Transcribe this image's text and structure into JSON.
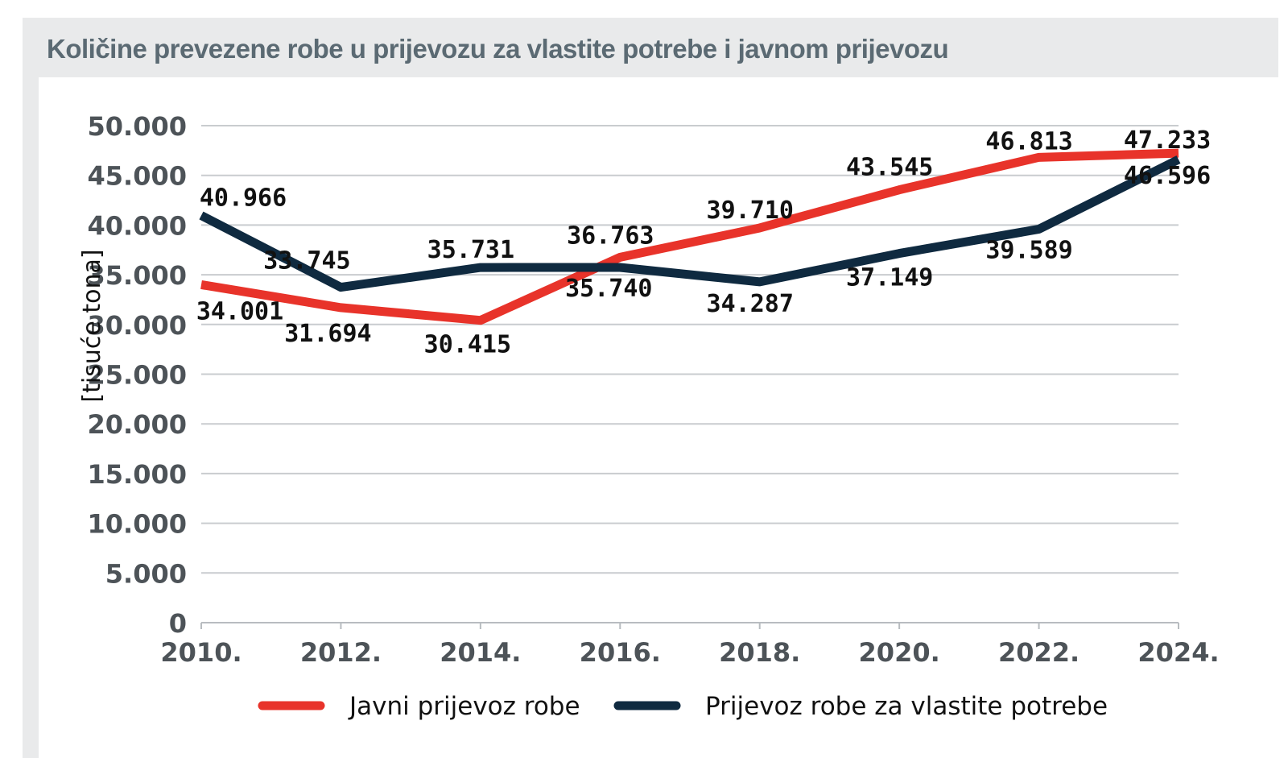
{
  "chart_data": {
    "type": "line",
    "title": "Količine prevezene robe u prijevozu za vlastite potrebe i javnom prijevozu",
    "xlabel": "",
    "ylabel": "[tisuće tona]",
    "categories": [
      "2010.",
      "2012.",
      "2014.",
      "2016.",
      "2018.",
      "2020.",
      "2022.",
      "2024."
    ],
    "ylim": [
      0,
      50000
    ],
    "yticks": [
      0,
      5000,
      10000,
      15000,
      20000,
      25000,
      30000,
      35000,
      40000,
      45000,
      50000
    ],
    "ytick_labels": [
      "0",
      "5.000",
      "10.000",
      "15.000",
      "20.000",
      "25.000",
      "30.000",
      "35.000",
      "40.000",
      "45.000",
      "50.000"
    ],
    "grid": true,
    "legend_position": "bottom",
    "series": [
      {
        "name": "Javni prijevoz robe",
        "color": "#e8332a",
        "values": [
          34001,
          31694,
          30415,
          36763,
          39710,
          43545,
          46813,
          47233
        ],
        "labels": [
          "34.001",
          "31.694",
          "30.415",
          "36.763",
          "39.710",
          "43.545",
          "46.813",
          "47.233"
        ]
      },
      {
        "name": "Prijevoz robe za vlastite potrebe",
        "color": "#0f2a40",
        "values": [
          40966,
          33745,
          35731,
          35740,
          34287,
          37149,
          39589,
          46596
        ],
        "labels": [
          "40.966",
          "33.745",
          "35.731",
          "35.740",
          "34.287",
          "37.149",
          "39.589",
          "46.596"
        ]
      }
    ]
  }
}
